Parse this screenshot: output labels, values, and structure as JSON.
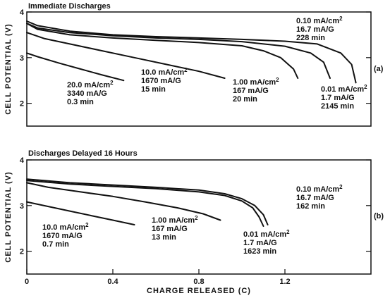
{
  "chart_data": [
    {
      "type": "line",
      "panel_tag": "(a)",
      "title": "Immediate Discharges",
      "xlabel": "",
      "ylabel": "CELL POTENTIAL (V)",
      "xlim": [
        0,
        1.6
      ],
      "ylim": [
        1.5,
        4
      ],
      "y_ticks": [
        2,
        3,
        4
      ],
      "x_ticks": [],
      "grid": false,
      "series": [
        {
          "x": [
            0,
            0.05,
            0.15,
            0.25,
            0.35,
            0.45
          ],
          "y": [
            3.1,
            3.02,
            2.88,
            2.75,
            2.62,
            2.5
          ],
          "labels": [
            "20.0 mA/cm",
            "3340 mA/G",
            "0.3 min"
          ]
        },
        {
          "x": [
            0,
            0.08,
            0.2,
            0.35,
            0.5,
            0.65,
            0.8,
            0.92
          ],
          "y": [
            3.55,
            3.42,
            3.3,
            3.15,
            3.0,
            2.85,
            2.7,
            2.55
          ],
          "labels": [
            "10.0 mA/cm",
            "1670 mA/G",
            "15 min"
          ]
        },
        {
          "x": [
            0,
            0.05,
            0.2,
            0.4,
            0.6,
            0.8,
            1.0,
            1.1,
            1.18,
            1.24,
            1.26
          ],
          "y": [
            3.75,
            3.62,
            3.5,
            3.43,
            3.38,
            3.33,
            3.26,
            3.15,
            3.0,
            2.75,
            2.55
          ],
          "labels": [
            "1.00 mA/cm",
            "167 mA/G",
            "20 min"
          ]
        },
        {
          "x": [
            0,
            0.05,
            0.2,
            0.4,
            0.6,
            0.8,
            1.0,
            1.2,
            1.32,
            1.38,
            1.41
          ],
          "y": [
            3.75,
            3.65,
            3.55,
            3.48,
            3.43,
            3.4,
            3.35,
            3.25,
            3.1,
            2.9,
            2.55
          ],
          "labels": [
            "0.01 mA/cm",
            "1.7 mA/G",
            "2145 min"
          ]
        },
        {
          "x": [
            0,
            0.05,
            0.2,
            0.4,
            0.6,
            0.8,
            1.0,
            1.2,
            1.35,
            1.46,
            1.51,
            1.53
          ],
          "y": [
            3.8,
            3.7,
            3.58,
            3.5,
            3.46,
            3.43,
            3.4,
            3.36,
            3.3,
            3.1,
            2.85,
            2.45
          ],
          "labels": [
            "0.10 mA/cm",
            "16.7 mA/G",
            "228 min"
          ]
        }
      ]
    },
    {
      "type": "line",
      "panel_tag": "(b)",
      "title": "Discharges Delayed 16 Hours",
      "xlabel": "CHARGE RELEASED (C)",
      "ylabel": "CELL POTENTIAL (V)",
      "xlim": [
        0,
        1.6
      ],
      "ylim": [
        1.5,
        4
      ],
      "y_ticks": [
        2,
        3,
        4
      ],
      "x_ticks": [
        0,
        0.4,
        0.8,
        1.2
      ],
      "x_tick_labels": [
        "0",
        "0.4",
        "0.8",
        "1.2"
      ],
      "grid": false,
      "series": [
        {
          "x": [
            0,
            0.1,
            0.2,
            0.3,
            0.4,
            0.5
          ],
          "y": [
            3.08,
            2.98,
            2.88,
            2.78,
            2.68,
            2.58
          ],
          "labels": [
            "10.0 mA/cm",
            "1670 mA/G",
            "0.7 min"
          ]
        },
        {
          "x": [
            0,
            0.1,
            0.25,
            0.4,
            0.55,
            0.7,
            0.82,
            0.9
          ],
          "y": [
            3.5,
            3.4,
            3.3,
            3.2,
            3.08,
            2.95,
            2.82,
            2.68
          ],
          "labels": [
            "1.00 mA/cm",
            "167 mA/G",
            "13 min"
          ]
        },
        {
          "x": [
            0,
            0.2,
            0.4,
            0.6,
            0.8,
            0.92,
            1.0,
            1.05,
            1.08,
            1.1
          ],
          "y": [
            3.55,
            3.47,
            3.42,
            3.37,
            3.3,
            3.22,
            3.1,
            2.95,
            2.75,
            2.55
          ],
          "labels": [
            "0.01 mA/cm",
            "1.7 mA/G",
            "1623 min"
          ]
        },
        {
          "x": [
            0,
            0.2,
            0.4,
            0.6,
            0.8,
            0.92,
            1.0,
            1.06,
            1.1,
            1.12
          ],
          "y": [
            3.58,
            3.5,
            3.45,
            3.4,
            3.34,
            3.26,
            3.15,
            3.0,
            2.8,
            2.58
          ],
          "labels": [
            "0.10 mA/cm",
            "16.7 mA/G",
            "162 min"
          ]
        }
      ]
    }
  ]
}
